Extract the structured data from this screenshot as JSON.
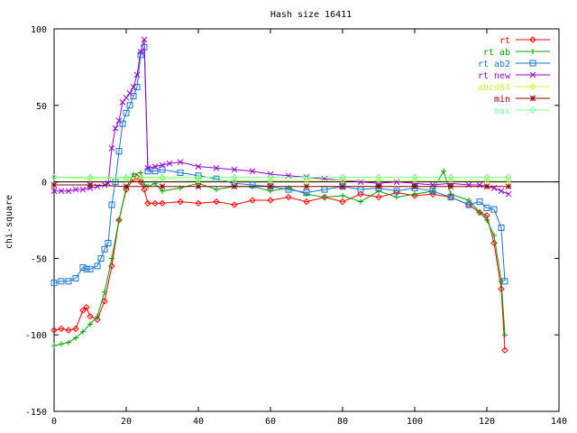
{
  "chart_data": {
    "type": "line",
    "title": "Hash size 16411",
    "xlabel": "",
    "ylabel": "chi-square",
    "xlim": [
      0,
      140
    ],
    "ylim": [
      -150,
      100
    ],
    "x_ticks": [
      0,
      20,
      40,
      60,
      80,
      100,
      120,
      140
    ],
    "y_ticks": [
      -150,
      -100,
      -50,
      0,
      50,
      100
    ],
    "x_tick_labels": [
      "0",
      "20",
      "40",
      "60",
      "80",
      "100",
      "120",
      "140"
    ],
    "y_tick_labels": [
      "-150",
      "-100",
      "-50",
      "0",
      "50",
      "100"
    ],
    "grid": false,
    "zero_line": true,
    "legend_position": "top-right",
    "series": [
      {
        "name": "rt",
        "color": "#ff0000",
        "marker": "diamond",
        "x": [
          0,
          2,
          4,
          6,
          8,
          9,
          10,
          12,
          14,
          16,
          18,
          20,
          22,
          23,
          24,
          25,
          26,
          28,
          30,
          35,
          40,
          45,
          50,
          55,
          60,
          65,
          70,
          75,
          80,
          85,
          90,
          95,
          100,
          105,
          110,
          115,
          118,
          120,
          122,
          124,
          125
        ],
        "y": [
          -97,
          -96,
          -97,
          -96,
          -84,
          -82,
          -88,
          -90,
          -78,
          -55,
          -25,
          -5,
          2,
          3,
          0,
          -5,
          -14,
          -14,
          -14,
          -13,
          -14,
          -13,
          -15,
          -12,
          -12,
          -10,
          -13,
          -10,
          -13,
          -8,
          -10,
          -7,
          -9,
          -8,
          -10,
          -15,
          -20,
          -22,
          -40,
          -70,
          -110
        ]
      },
      {
        "name": "rt ab",
        "color": "#00a000",
        "marker": "plus",
        "x": [
          0,
          2,
          4,
          6,
          8,
          10,
          12,
          14,
          16,
          18,
          20,
          22,
          24,
          25,
          26,
          28,
          30,
          35,
          40,
          45,
          50,
          55,
          60,
          65,
          70,
          75,
          80,
          85,
          90,
          95,
          100,
          105,
          108,
          110,
          115,
          118,
          120,
          122,
          124,
          125
        ],
        "y": [
          -107,
          -106,
          -105,
          -102,
          -98,
          -93,
          -88,
          -72,
          -50,
          -25,
          -4,
          5,
          6,
          -2,
          -3,
          -1,
          -6,
          -4,
          -1,
          -5,
          -3,
          -3,
          -6,
          -4,
          -8,
          -10,
          -9,
          -13,
          -6,
          -10,
          -8,
          -6,
          7,
          -8,
          -12,
          -20,
          -25,
          -35,
          -65,
          -100
        ]
      },
      {
        "name": "rt ab2",
        "color": "#1874cd",
        "marker": "square",
        "x": [
          0,
          2,
          4,
          6,
          8,
          9,
          10,
          12,
          13,
          14,
          15,
          16,
          17,
          18,
          19,
          20,
          21,
          22,
          23,
          24,
          25,
          26,
          28,
          30,
          35,
          40,
          45,
          50,
          55,
          60,
          65,
          70,
          75,
          80,
          85,
          90,
          95,
          100,
          105,
          110,
          115,
          118,
          120,
          122,
          124,
          125
        ],
        "y": [
          -66,
          -65,
          -65,
          -63,
          -56,
          -57,
          -57,
          -55,
          -50,
          -44,
          -40,
          -15,
          0,
          20,
          38,
          45,
          50,
          56,
          62,
          83,
          88,
          7,
          7,
          8,
          6,
          4,
          2,
          -1,
          -2,
          -3,
          -5,
          -7,
          -5,
          -3,
          -5,
          -4,
          -6,
          -4,
          -6,
          -10,
          -15,
          -13,
          -17,
          -18,
          -30,
          -65
        ]
      },
      {
        "name": "rt new",
        "color": "#9400d3",
        "marker": "cross",
        "x": [
          0,
          2,
          4,
          6,
          8,
          10,
          12,
          14,
          15,
          16,
          17,
          18,
          19,
          20,
          21,
          22,
          23,
          24,
          25,
          26,
          28,
          30,
          32,
          35,
          40,
          45,
          50,
          55,
          60,
          65,
          70,
          75,
          80,
          85,
          90,
          95,
          100,
          105,
          110,
          115,
          118,
          120,
          122,
          124,
          126
        ],
        "y": [
          -6,
          -6,
          -6,
          -5,
          -5,
          -4,
          -3,
          -2,
          -1,
          22,
          35,
          40,
          52,
          55,
          58,
          62,
          70,
          85,
          93,
          9,
          10,
          11,
          12,
          13,
          10,
          9,
          8,
          7,
          5,
          4,
          3,
          2,
          1,
          0,
          -1,
          0,
          -1,
          -2,
          -1,
          -2,
          -2,
          -3,
          -4,
          -6,
          -8
        ]
      },
      {
        "name": "abcd64",
        "color": "#c0ff3e",
        "marker": "diamond",
        "x": [
          0,
          10,
          20,
          30,
          40,
          50,
          60,
          70,
          80,
          90,
          100,
          110,
          120,
          126
        ],
        "y": [
          3,
          2,
          2,
          2,
          1,
          1,
          1,
          1,
          1,
          1,
          1,
          1,
          1,
          1
        ]
      },
      {
        "name": "min",
        "color": "#8b0000",
        "marker": "star",
        "x": [
          0,
          10,
          20,
          30,
          40,
          50,
          60,
          70,
          80,
          90,
          100,
          110,
          120,
          126
        ],
        "y": [
          -2,
          -2,
          -3,
          -3,
          -3,
          -3,
          -3,
          -3,
          -3,
          -3,
          -3,
          -3,
          -3,
          -3
        ]
      },
      {
        "name": "max",
        "color": "#7cff9e",
        "marker": "diamond",
        "x": [
          0,
          10,
          20,
          30,
          40,
          50,
          60,
          70,
          80,
          90,
          100,
          110,
          120,
          126
        ],
        "y": [
          3,
          3,
          3,
          3,
          3,
          3,
          3,
          3,
          3,
          3,
          3,
          3,
          3,
          3
        ]
      }
    ]
  }
}
